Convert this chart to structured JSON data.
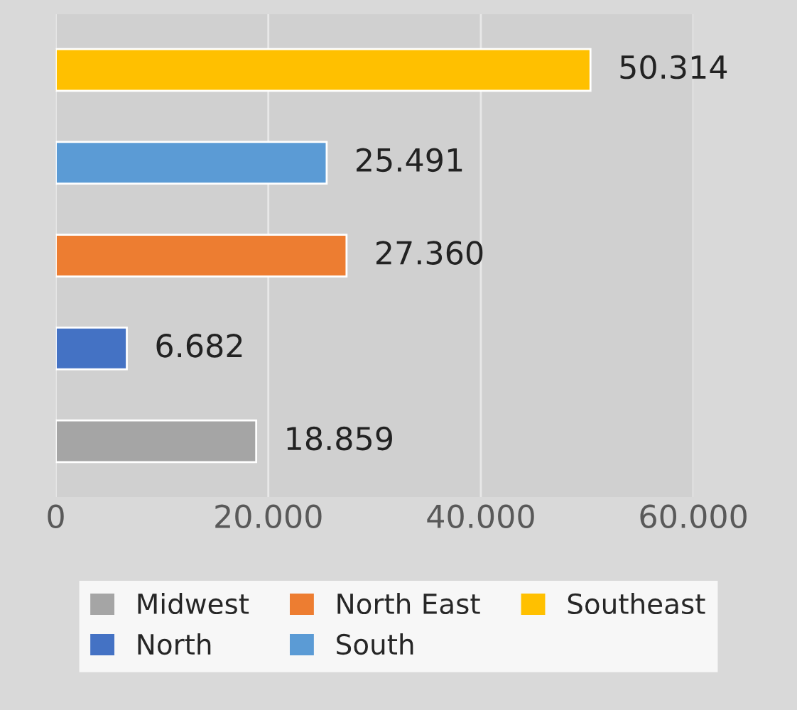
{
  "chart_data": {
    "type": "bar",
    "orientation": "horizontal",
    "categories": [
      null,
      null,
      null,
      null,
      null
    ],
    "series": [
      {
        "name": "Midwest",
        "color": "#a5a5a5",
        "values": [
          null,
          null,
          null,
          null,
          18859
        ],
        "value_labels": [
          null,
          null,
          null,
          null,
          "18.859"
        ]
      },
      {
        "name": "North",
        "color": "#4472c4",
        "values": [
          null,
          null,
          null,
          6682,
          null
        ],
        "value_labels": [
          null,
          null,
          null,
          "6.682",
          null
        ]
      },
      {
        "name": "North East",
        "color": "#ed7d31",
        "values": [
          null,
          null,
          27360,
          null,
          null
        ],
        "value_labels": [
          null,
          null,
          "27.360",
          null,
          null
        ]
      },
      {
        "name": "South",
        "color": "#5b9bd5",
        "values": [
          null,
          25491,
          null,
          null,
          null
        ],
        "value_labels": [
          null,
          "25.491",
          null,
          null,
          null
        ]
      },
      {
        "name": "Southeast",
        "color": "#ffc000",
        "values": [
          50314,
          null,
          null,
          null,
          null
        ],
        "value_labels": [
          "50.314",
          null,
          null,
          null,
          null
        ]
      }
    ],
    "xlim": [
      0,
      60000
    ],
    "xticks": [
      0,
      {
        "value": 20000,
        "label": "20.000"
      },
      {
        "value": 40000,
        "label": "40.000"
      },
      {
        "value": 60000,
        "label": "60.000"
      }
    ],
    "grid": "x",
    "legend": "bottom",
    "tick_labels": "x"
  }
}
